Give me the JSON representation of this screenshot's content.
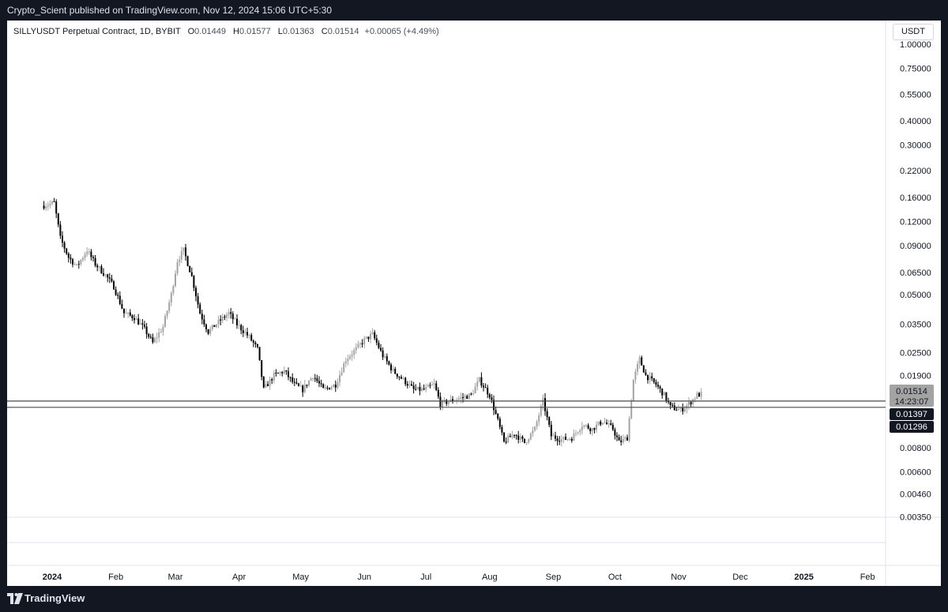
{
  "header": {
    "published_text": "Crypto_Scient published on TradingView.com, Nov 12, 2024 15:06 UTC+5:30"
  },
  "legend": {
    "symbol": "SILLYUSDT Perpetual Contract, 1D, BYBIT",
    "open_label": "O",
    "open": "0.01449",
    "high_label": "H",
    "high": "0.01577",
    "low_label": "L",
    "low": "0.01363",
    "close_label": "C",
    "close": "0.01514",
    "change": "+0.00065 (+4.49%)"
  },
  "currency_button": "USDT",
  "price_axis": [
    "1.00000",
    "0.75000",
    "0.55000",
    "0.40000",
    "0.30000",
    "0.22000",
    "0.16000",
    "0.12000",
    "0.09000",
    "0.06500",
    "0.05000",
    "0.03500",
    "0.02500",
    "0.01900",
    "0.00800",
    "0.00600",
    "0.00460",
    "0.00350"
  ],
  "badges": {
    "last_price": "0.01514",
    "countdown": "14:23:07",
    "level_1": "0.01397",
    "level_2": "0.01296"
  },
  "time_axis": [
    "2024",
    "Feb",
    "Mar",
    "Apr",
    "May",
    "Jun",
    "Jul",
    "Aug",
    "Sep",
    "Oct",
    "Nov",
    "Dec",
    "2025",
    "Feb"
  ],
  "footer": {
    "brand": "TradingView"
  },
  "chart_data": {
    "type": "candlestick",
    "symbol": "SILLYUSDT Perpetual Contract",
    "timeframe": "1D",
    "exchange": "BYBIT",
    "y_scale": "log",
    "ylim": [
      0.0035,
      1.0
    ],
    "horizontal_levels": [
      0.01397,
      0.01296
    ],
    "last_price": 0.01514,
    "colors": {
      "up": "#a3a3a3",
      "down": "#000000",
      "level": "#4a4a4a",
      "last_badge": "#a3a3a3"
    },
    "series_points": [
      [
        "2023-12-28",
        0.145
      ],
      [
        "2024-01-02",
        0.15
      ],
      [
        "2024-01-05",
        0.098
      ],
      [
        "2024-01-09",
        0.078
      ],
      [
        "2024-01-13",
        0.07
      ],
      [
        "2024-01-18",
        0.085
      ],
      [
        "2024-01-22",
        0.072
      ],
      [
        "2024-01-27",
        0.063
      ],
      [
        "2024-01-31",
        0.055
      ],
      [
        "2024-02-05",
        0.04
      ],
      [
        "2024-02-10",
        0.038
      ],
      [
        "2024-02-15",
        0.033
      ],
      [
        "2024-02-19",
        0.028
      ],
      [
        "2024-02-24",
        0.034
      ],
      [
        "2024-02-28",
        0.05
      ],
      [
        "2024-03-02",
        0.075
      ],
      [
        "2024-03-05",
        0.085
      ],
      [
        "2024-03-09",
        0.062
      ],
      [
        "2024-03-13",
        0.04
      ],
      [
        "2024-03-17",
        0.032
      ],
      [
        "2024-03-22",
        0.036
      ],
      [
        "2024-03-27",
        0.04
      ],
      [
        "2024-03-31",
        0.035
      ],
      [
        "2024-04-06",
        0.03
      ],
      [
        "2024-04-10",
        0.026
      ],
      [
        "2024-04-13",
        0.016
      ],
      [
        "2024-04-18",
        0.019
      ],
      [
        "2024-04-23",
        0.02
      ],
      [
        "2024-04-28",
        0.017
      ],
      [
        "2024-05-02",
        0.016
      ],
      [
        "2024-05-07",
        0.019
      ],
      [
        "2024-05-12",
        0.016
      ],
      [
        "2024-05-18",
        0.017
      ],
      [
        "2024-05-23",
        0.023
      ],
      [
        "2024-05-28",
        0.026
      ],
      [
        "2024-06-01",
        0.029
      ],
      [
        "2024-06-05",
        0.031
      ],
      [
        "2024-06-10",
        0.024
      ],
      [
        "2024-06-15",
        0.02
      ],
      [
        "2024-06-20",
        0.018
      ],
      [
        "2024-06-25",
        0.016
      ],
      [
        "2024-06-30",
        0.016
      ],
      [
        "2024-07-05",
        0.017
      ],
      [
        "2024-07-08",
        0.0135
      ],
      [
        "2024-07-13",
        0.014
      ],
      [
        "2024-07-18",
        0.0145
      ],
      [
        "2024-07-23",
        0.015
      ],
      [
        "2024-07-27",
        0.018
      ],
      [
        "2024-08-01",
        0.015
      ],
      [
        "2024-08-05",
        0.011
      ],
      [
        "2024-08-08",
        0.0085
      ],
      [
        "2024-08-13",
        0.0095
      ],
      [
        "2024-08-18",
        0.0085
      ],
      [
        "2024-08-23",
        0.01
      ],
      [
        "2024-08-27",
        0.014
      ],
      [
        "2024-08-31",
        0.0092
      ],
      [
        "2024-09-05",
        0.0088
      ],
      [
        "2024-09-10",
        0.009
      ],
      [
        "2024-09-15",
        0.0105
      ],
      [
        "2024-09-20",
        0.01
      ],
      [
        "2024-09-25",
        0.011
      ],
      [
        "2024-09-30",
        0.01
      ],
      [
        "2024-10-03",
        0.0085
      ],
      [
        "2024-10-07",
        0.009
      ],
      [
        "2024-10-10",
        0.018
      ],
      [
        "2024-10-13",
        0.023
      ],
      [
        "2024-10-16",
        0.019
      ],
      [
        "2024-10-21",
        0.017
      ],
      [
        "2024-10-25",
        0.015
      ],
      [
        "2024-10-28",
        0.013
      ],
      [
        "2024-11-02",
        0.0125
      ],
      [
        "2024-11-06",
        0.0135
      ],
      [
        "2024-11-10",
        0.015
      ],
      [
        "2024-11-12",
        0.01514
      ]
    ]
  }
}
